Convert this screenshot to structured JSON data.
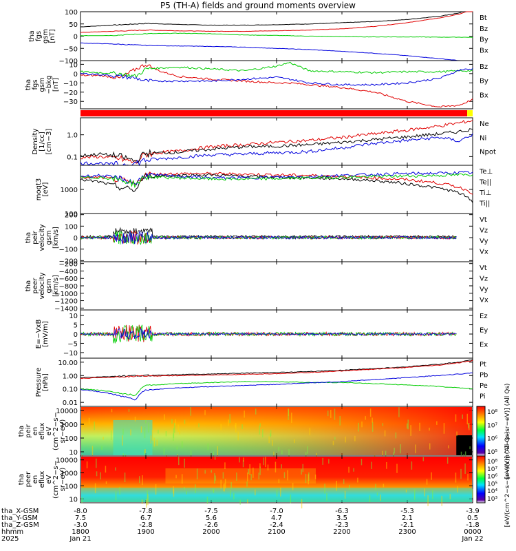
{
  "title": "P5 (TH-A) fields and ground moments overview",
  "time_axis": {
    "hhmm": [
      "1800",
      "1900",
      "2000",
      "2100",
      "2200",
      "2300",
      "0000"
    ],
    "dates": [
      "Jan 21",
      "",
      "",
      "",
      "",
      "",
      "Jan 22"
    ],
    "year": "2025",
    "rows": [
      {
        "label": "tha_X-GSM",
        "values": [
          "-8.0",
          "-7.8",
          "-7.5",
          "-7.0",
          "-6.3",
          "-5.3",
          "-3.9"
        ]
      },
      {
        "label": "tha_Y-GSM",
        "values": [
          "7.5",
          "6.7",
          "5.6",
          "4.7",
          "3.5",
          "2.1",
          "0.5"
        ]
      },
      {
        "label": "tha_Z-GSM",
        "values": [
          "-3.0",
          "-2.8",
          "-2.6",
          "-2.4",
          "-2.3",
          "-2.1",
          "-1.8"
        ]
      },
      {
        "label": "hhmm",
        "values": [
          "1800",
          "1900",
          "2000",
          "2100",
          "2200",
          "2300",
          "0000"
        ]
      }
    ]
  },
  "chart_data": [
    {
      "type": "line",
      "ylabel": [
        "tha",
        "fgs",
        "gsm",
        "[nT]"
      ],
      "yticks": [
        "100",
        "50",
        "0",
        "−50",
        "−100"
      ],
      "ylim": [
        -100,
        100
      ],
      "x_hours": [
        18,
        18.5,
        19,
        19.5,
        20,
        20.5,
        21,
        21.5,
        22,
        22.5,
        23,
        23.5,
        23.8,
        24
      ],
      "series": [
        {
          "name": "Bt",
          "color": "#000000",
          "values": [
            38,
            45,
            52,
            48,
            45,
            45,
            47,
            50,
            55,
            60,
            68,
            82,
            95,
            115
          ]
        },
        {
          "name": "Bz",
          "color": "#e00000",
          "values": [
            15,
            20,
            25,
            22,
            20,
            20,
            22,
            25,
            30,
            40,
            55,
            75,
            90,
            110
          ]
        },
        {
          "name": "By",
          "color": "#00cc00",
          "values": [
            2,
            3,
            10,
            12,
            10,
            5,
            3,
            0,
            -2,
            -3,
            -3,
            -4,
            -4,
            -5
          ]
        },
        {
          "name": "Bx",
          "color": "#0000dd",
          "values": [
            -28,
            -32,
            -38,
            -40,
            -42,
            -45,
            -50,
            -55,
            -62,
            -70,
            -80,
            -92,
            -100,
            -108
          ]
        }
      ]
    },
    {
      "type": "line",
      "ylabel": [
        "tha",
        "fgs",
        "gsm",
        "−bkg",
        "[nT]"
      ],
      "yticks": [
        "10",
        "0",
        "−10",
        "−20",
        "−30"
      ],
      "ylim": [
        -38,
        14
      ],
      "x_hours": [
        18,
        18.3,
        18.6,
        18.85,
        19,
        19.2,
        19.5,
        20,
        20.5,
        21,
        21.2,
        21.5,
        22,
        22.5,
        23,
        23.5,
        23.8,
        24
      ],
      "series": [
        {
          "name": "Bz",
          "color": "#e00000",
          "values": [
            -2,
            -2,
            -5,
            5,
            10,
            3,
            -3,
            -6,
            -8,
            -10,
            -10,
            -12,
            -15,
            -20,
            -30,
            -36,
            -34,
            -28
          ]
        },
        {
          "name": "By",
          "color": "#00cc00",
          "values": [
            2,
            1,
            0,
            -3,
            5,
            6,
            7,
            5,
            3,
            8,
            12,
            3,
            2,
            1,
            2,
            2,
            3,
            3
          ]
        },
        {
          "name": "Bx",
          "color": "#0000dd",
          "values": [
            0,
            -1,
            -3,
            -5,
            -8,
            -8,
            -8,
            -8,
            -6,
            -4,
            -6,
            -10,
            -12,
            -12,
            -10,
            -5,
            4,
            5
          ]
        }
      ]
    },
    {
      "type": "line",
      "ylabel": [
        "Density",
        "[1/cc]",
        "[cm−3]"
      ],
      "yticks": [
        "1.0",
        "0.1"
      ],
      "ylim": [
        0.04,
        6
      ],
      "x_hours": [
        18,
        18.3,
        18.6,
        18.85,
        19,
        19.5,
        20,
        20.5,
        21,
        21.5,
        22,
        22.5,
        23,
        23.5,
        23.8,
        24
      ],
      "series": [
        {
          "name": "Ne",
          "color": "#e00000",
          "values": [
            0.09,
            0.1,
            0.08,
            0.05,
            0.13,
            0.18,
            0.28,
            0.35,
            0.45,
            0.55,
            0.75,
            1.1,
            1.6,
            2.5,
            3.5,
            4.5
          ]
        },
        {
          "name": "Ni",
          "color": "#000000",
          "values": [
            0.11,
            0.13,
            0.1,
            0.06,
            0.14,
            0.16,
            0.22,
            0.28,
            0.3,
            0.35,
            0.45,
            0.6,
            0.8,
            1.1,
            1.4,
            1.8
          ]
        },
        {
          "name": "Npot",
          "color": "#0000dd",
          "values": [
            0.05,
            0.05,
            0.04,
            0.05,
            0.07,
            0.09,
            0.12,
            0.13,
            0.15,
            0.17,
            0.25,
            0.4,
            0.55,
            0.75,
            0.5,
            1.0
          ]
        }
      ]
    },
    {
      "type": "line",
      "ylabel": [
        "moqt3",
        "[eV]"
      ],
      "yticks": [
        "1000",
        "100"
      ],
      "ylim": [
        100,
        10000
      ],
      "x_hours": [
        18,
        18.3,
        18.6,
        18.85,
        19,
        19.5,
        20,
        20.5,
        21,
        21.5,
        22,
        22.5,
        23,
        23.5,
        23.8,
        24
      ],
      "series": [
        {
          "name": "Te⊥",
          "color": "#e00000",
          "values": [
            3000,
            3200,
            2500,
            1500,
            4200,
            4500,
            4500,
            4300,
            4000,
            3800,
            3500,
            3000,
            2500,
            1800,
            1200,
            700
          ]
        },
        {
          "name": "Te||",
          "color": "#000000",
          "values": [
            2500,
            2000,
            1200,
            900,
            3500,
            3800,
            4000,
            3500,
            3200,
            3000,
            2800,
            2300,
            1700,
            1100,
            700,
            300
          ]
        },
        {
          "name": "Ti⊥",
          "color": "#0000dd",
          "values": [
            3500,
            3800,
            2800,
            1700,
            4000,
            3500,
            3000,
            3000,
            3200,
            3400,
            3800,
            4200,
            4500,
            4700,
            4900,
            5000
          ]
        },
        {
          "name": "Ti||",
          "color": "#00cc00",
          "values": [
            3000,
            3200,
            2500,
            1600,
            3300,
            3000,
            2700,
            2700,
            2800,
            3000,
            3200,
            3400,
            3600,
            3800,
            4000,
            4000
          ]
        }
      ]
    },
    {
      "type": "line",
      "ylabel": [
        "tha",
        "peir",
        "velocity",
        "gsm",
        "[km/s]"
      ],
      "yticks": [
        "200",
        "100",
        "0",
        "−100",
        "−200"
      ],
      "ylim": [
        -210,
        210
      ],
      "series": [
        {
          "name": "Vt",
          "color": "#000000"
        },
        {
          "name": "Vz",
          "color": "#e00000"
        },
        {
          "name": "Vy",
          "color": "#00cc00"
        },
        {
          "name": "Vx",
          "color": "#0000dd"
        }
      ]
    },
    {
      "type": "line",
      "ylabel": [
        "tha",
        "peer",
        "velocity",
        "gsm",
        "[km/s]"
      ],
      "yticks": [
        "−200",
        "−400",
        "−600",
        "−800",
        "−1000",
        "−1200",
        "−1400"
      ],
      "ylim": [
        -1450,
        -150
      ],
      "series": [
        {
          "name": "Vt",
          "color": "#000000"
        },
        {
          "name": "Vz",
          "color": "#e00000"
        },
        {
          "name": "Vy",
          "color": "#00cc00"
        },
        {
          "name": "Vx",
          "color": "#0000dd"
        }
      ]
    },
    {
      "type": "line",
      "ylabel": [
        "E=−VxB",
        "[mV/m]"
      ],
      "yticks": [
        "10",
        "5",
        "0",
        "−5",
        "−10"
      ],
      "ylim": [
        -13,
        13
      ],
      "series": [
        {
          "name": "Ez",
          "color": "#e00000"
        },
        {
          "name": "Ey",
          "color": "#00cc00"
        },
        {
          "name": "Ex",
          "color": "#0000dd"
        }
      ]
    },
    {
      "type": "line",
      "ylabel": [
        "Pressure",
        "[nPa]"
      ],
      "yticks": [
        "10.00",
        "1.00",
        "0.10",
        "0.01"
      ],
      "ylim": [
        0.005,
        20
      ],
      "x_hours": [
        18,
        18.3,
        18.6,
        18.85,
        19,
        19.5,
        20,
        20.5,
        21,
        21.5,
        22,
        22.5,
        23,
        23.5,
        23.8,
        24
      ],
      "series": [
        {
          "name": "Pt",
          "color": "#000000",
          "values": [
            0.7,
            0.8,
            0.9,
            0.95,
            1.0,
            1.2,
            1.3,
            1.5,
            1.7,
            2.0,
            2.5,
            3.3,
            4.5,
            7,
            10,
            15
          ]
        },
        {
          "name": "Pb",
          "color": "#e00000",
          "values": [
            0.6,
            0.7,
            0.8,
            0.9,
            0.9,
            1.0,
            1.1,
            1.2,
            1.4,
            1.7,
            2.2,
            3,
            4,
            6,
            9,
            13
          ]
        },
        {
          "name": "Pe",
          "color": "#00cc00",
          "values": [
            0.1,
            0.08,
            0.05,
            0.03,
            0.18,
            0.25,
            0.3,
            0.35,
            0.35,
            0.3,
            0.3,
            0.25,
            0.2,
            0.15,
            0.12,
            0.1
          ]
        },
        {
          "name": "Pi",
          "color": "#0000dd",
          "values": [
            0.09,
            0.06,
            0.03,
            0.015,
            0.08,
            0.12,
            0.15,
            0.18,
            0.22,
            0.28,
            0.35,
            0.5,
            0.7,
            1.0,
            1.3,
            1.6
          ]
        }
      ]
    },
    {
      "type": "heatmap",
      "ylabel": [
        "tha",
        "peir",
        "en",
        "eflux",
        "eV",
        "(cm^2−s−",
        "sr−eV)"
      ],
      "yticks": [
        "10000",
        "1000",
        "100",
        "10"
      ],
      "ylim": [
        5,
        20000
      ]
    },
    {
      "type": "heatmap",
      "ylabel": [
        "tha",
        "peer",
        "en",
        "eflux",
        "eV",
        "(cm^2−s−",
        "sr−eV)"
      ],
      "yticks": [
        "10000",
        "1000",
        "100",
        "10"
      ],
      "ylim": [
        5,
        20000
      ]
    }
  ],
  "colorbars": [
    {
      "ticks": [
        "10^8",
        "10^7",
        "10^6",
        "10^5"
      ],
      "label": "[eV/(cm^2−s−sr−eV)] (All Qs)"
    },
    {
      "ticks": [
        "10^8",
        "10^7",
        "10^6",
        "10^5",
        "10^4",
        "10^3"
      ],
      "label": "[eV/(cm^2−s−sr−eV)] (All Qs)"
    }
  ]
}
